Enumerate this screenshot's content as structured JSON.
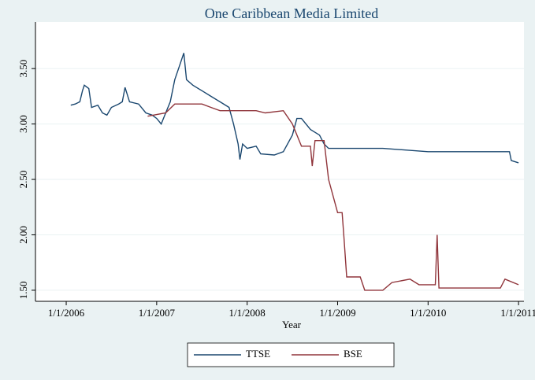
{
  "chart_data": {
    "type": "line",
    "title": "One Caribbean Media Limited",
    "xlabel": "Year",
    "xlim": [
      2005.66,
      2011.06
    ],
    "ylim": [
      1.4,
      3.92
    ],
    "xticks": [
      {
        "value": 2006,
        "label": "1/1/2006"
      },
      {
        "value": 2007,
        "label": "1/1/2007"
      },
      {
        "value": 2008,
        "label": "1/1/2008"
      },
      {
        "value": 2009,
        "label": "1/1/2009"
      },
      {
        "value": 2010,
        "label": "1/1/2010"
      },
      {
        "value": 2011,
        "label": "1/1/2011"
      }
    ],
    "yticks": [
      {
        "value": 1.5,
        "label": "1.50"
      },
      {
        "value": 2,
        "label": "2.00"
      },
      {
        "value": 2.5,
        "label": "2.50"
      },
      {
        "value": 3,
        "label": "3.00"
      },
      {
        "value": 3.5,
        "label": "3.50"
      }
    ],
    "grid": true,
    "legend": "bottom",
    "series": [
      {
        "name": "TTSE",
        "color": "#1a476f",
        "x": [
          2006.05,
          2006.1,
          2006.15,
          2006.18,
          2006.2,
          2006.25,
          2006.28,
          2006.35,
          2006.4,
          2006.45,
          2006.5,
          2006.58,
          2006.62,
          2006.65,
          2006.7,
          2006.8,
          2006.88,
          2006.95,
          2007.0,
          2007.05,
          2007.1,
          2007.15,
          2007.2,
          2007.25,
          2007.3,
          2007.33,
          2007.4,
          2007.5,
          2007.6,
          2007.7,
          2007.8,
          2007.85,
          2007.9,
          2007.92,
          2007.95,
          2008.0,
          2008.1,
          2008.15,
          2008.3,
          2008.4,
          2008.5,
          2008.55,
          2008.6,
          2008.7,
          2008.8,
          2008.85,
          2008.9,
          2009.0,
          2009.5,
          2010.0,
          2010.9,
          2010.92,
          2011.0
        ],
        "values": [
          3.17,
          3.18,
          3.2,
          3.3,
          3.35,
          3.32,
          3.15,
          3.17,
          3.1,
          3.08,
          3.15,
          3.18,
          3.2,
          3.33,
          3.2,
          3.18,
          3.1,
          3.08,
          3.05,
          3.0,
          3.1,
          3.2,
          3.4,
          3.52,
          3.64,
          3.4,
          3.35,
          3.3,
          3.25,
          3.2,
          3.15,
          3.0,
          2.82,
          2.68,
          2.82,
          2.78,
          2.8,
          2.73,
          2.72,
          2.75,
          2.9,
          3.05,
          3.05,
          2.95,
          2.9,
          2.82,
          2.78,
          2.78,
          2.78,
          2.75,
          2.75,
          2.67,
          2.65
        ]
      },
      {
        "name": "BSE",
        "color": "#90353b",
        "x": [
          2006.9,
          2007.1,
          2007.2,
          2007.5,
          2007.6,
          2007.7,
          2008.1,
          2008.2,
          2008.4,
          2008.5,
          2008.6,
          2008.7,
          2008.72,
          2008.75,
          2008.85,
          2008.9,
          2009.0,
          2009.05,
          2009.07,
          2009.1,
          2009.25,
          2009.3,
          2009.5,
          2009.6,
          2009.8,
          2009.9,
          2010.08,
          2010.1,
          2010.12,
          2010.8,
          2010.85,
          2011.0
        ],
        "values": [
          3.07,
          3.1,
          3.18,
          3.18,
          3.15,
          3.12,
          3.12,
          3.1,
          3.12,
          3.0,
          2.8,
          2.8,
          2.62,
          2.85,
          2.85,
          2.5,
          2.2,
          2.2,
          1.98,
          1.62,
          1.62,
          1.5,
          1.5,
          1.57,
          1.6,
          1.55,
          1.55,
          2.0,
          1.52,
          1.52,
          1.6,
          1.55
        ]
      }
    ]
  }
}
